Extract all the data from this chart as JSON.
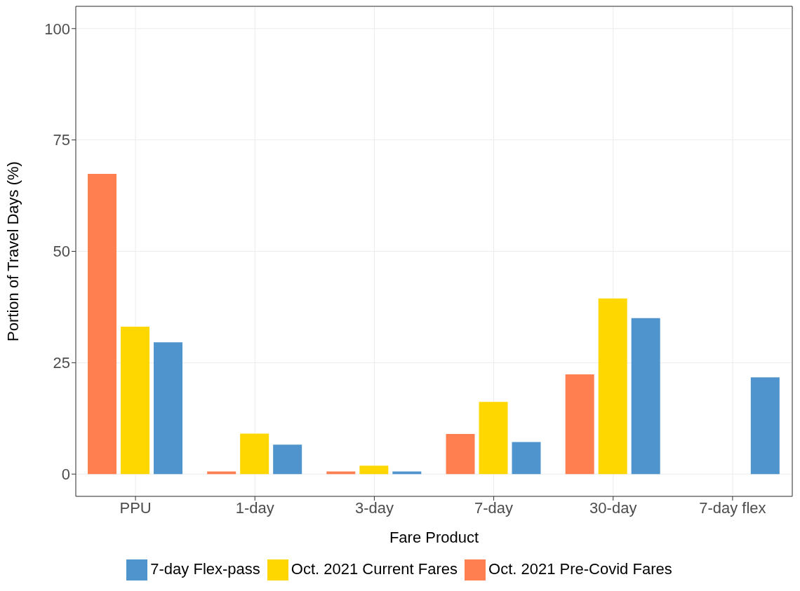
{
  "chart_data": {
    "type": "bar",
    "xlabel": "Fare Product",
    "ylabel": "Portion of Travel Days (%)",
    "categories": [
      "PPU",
      "1-day",
      "3-day",
      "7-day",
      "30-day",
      "7-day flex"
    ],
    "series": [
      {
        "name": "Oct. 2021 Pre-Covid Fares",
        "color": "#ff7f50",
        "values": [
          67.4,
          0.6,
          0.6,
          9.0,
          22.4,
          null
        ]
      },
      {
        "name": "Oct. 2021 Current Fares",
        "color": "#ffd700",
        "values": [
          33.1,
          9.1,
          1.9,
          16.2,
          39.4,
          null
        ]
      },
      {
        "name": "7-day Flex-pass",
        "color": "#4f94cd",
        "values": [
          29.6,
          6.6,
          0.6,
          7.2,
          35.0,
          21.7
        ]
      }
    ],
    "ylim": [
      -5,
      105
    ],
    "yticks": [
      0,
      25,
      50,
      75,
      100
    ],
    "grid": true,
    "legend": "bottom"
  }
}
